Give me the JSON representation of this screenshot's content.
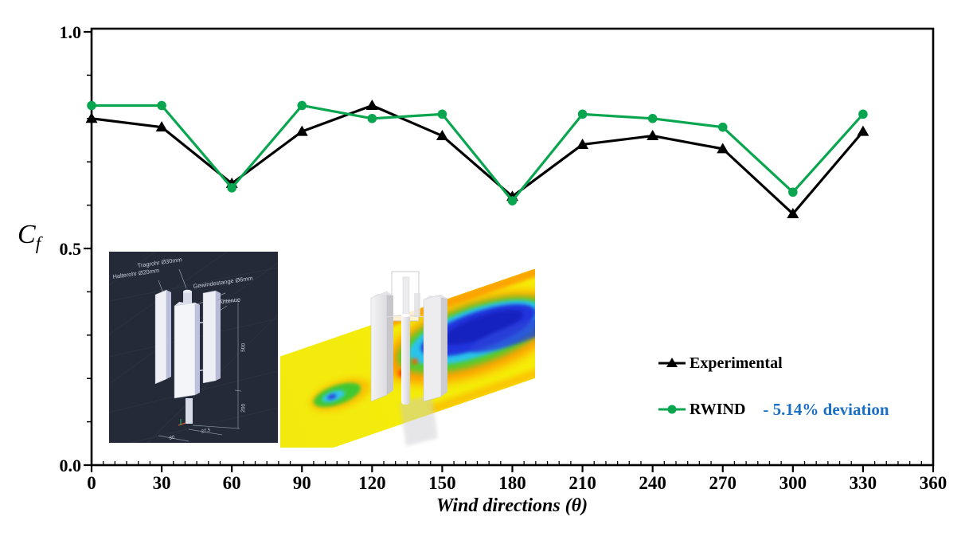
{
  "page": {
    "background": "#ffffff"
  },
  "chart": {
    "y_axis_symbol": "C",
    "y_axis_symbol_sub": "f",
    "x_axis_title": "Wind directions (θ)",
    "y_tick_labels": [
      "1.0",
      "0.5",
      "0.0"
    ],
    "x_tick_labels": [
      "0",
      "30",
      "60",
      "90",
      "120",
      "150",
      "180",
      "210",
      "240",
      "270",
      "300",
      "330",
      "360"
    ]
  },
  "chart_data": {
    "type": "line",
    "title": "",
    "xlabel": "Wind directions (θ)",
    "ylabel": "Cf",
    "x": [
      0,
      30,
      60,
      90,
      120,
      150,
      180,
      210,
      240,
      270,
      300,
      330
    ],
    "xlim": [
      0,
      360
    ],
    "ylim": [
      0.0,
      1.0
    ],
    "x_major_tick_step": 30,
    "x_minor_tick_step": 5,
    "y_major_tick_step": 0.5,
    "y_minor_tick_step": 0.1,
    "grid": false,
    "legend_position": "right-middle",
    "series": [
      {
        "name": "Experimental",
        "color": "#000000",
        "marker": "triangle",
        "values": [
          0.8,
          0.78,
          0.65,
          0.77,
          0.83,
          0.76,
          0.62,
          0.74,
          0.76,
          0.73,
          0.58,
          0.77
        ]
      },
      {
        "name": "RWIND",
        "color": "#0AA64F",
        "marker": "circle",
        "values": [
          0.83,
          0.83,
          0.64,
          0.83,
          0.8,
          0.81,
          0.61,
          0.81,
          0.8,
          0.78,
          0.63,
          0.81
        ]
      }
    ]
  },
  "legend": {
    "experimental_label": "Experimental",
    "rwind_label": "RWIND",
    "deviation_note": "- 5.14% deviation",
    "deviation_color": "#1B6FC4"
  },
  "insets": {
    "cad_drawing": {
      "background": "#242A37",
      "labels": {
        "tragrohr": "Tragrohr Ø30mm",
        "halterohr": "Halterohr Ø20mm",
        "gewindestange": "Gewindestange Ø6mm",
        "antenne": "Antenne"
      },
      "dimensions": {
        "height_upper": "500",
        "height_lower": "200",
        "width_small": "37.5",
        "width_base": "80"
      }
    },
    "cfd_view": {
      "palette": [
        "#f2ea0c",
        "#ff9000",
        "#52cc2e",
        "#2cc4ea",
        "#2336dd"
      ]
    }
  }
}
